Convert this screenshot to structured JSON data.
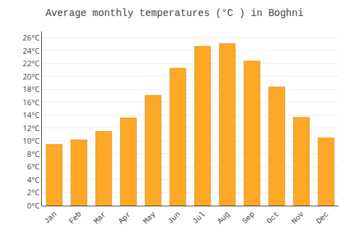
{
  "chart_data": {
    "type": "bar",
    "title": "Average monthly temperatures (°C ) in Boghni",
    "categories": [
      "Jan",
      "Feb",
      "Mar",
      "Apr",
      "May",
      "Jun",
      "Jul",
      "Aug",
      "Sep",
      "Oct",
      "Nov",
      "Dec"
    ],
    "values": [
      9.5,
      10.2,
      11.5,
      13.6,
      17.1,
      21.3,
      24.7,
      25.1,
      22.4,
      18.4,
      13.7,
      10.5
    ],
    "color": "#FFA726",
    "ylim": [
      0,
      27
    ],
    "yticks": [
      {
        "value": 0,
        "label": "0°C"
      },
      {
        "value": 2,
        "label": "2°C"
      },
      {
        "value": 4,
        "label": "4°C"
      },
      {
        "value": 6,
        "label": "6°C"
      },
      {
        "value": 8,
        "label": "8°C"
      },
      {
        "value": 10,
        "label": "10°C"
      },
      {
        "value": 12,
        "label": "12°C"
      },
      {
        "value": 14,
        "label": "14°C"
      },
      {
        "value": 16,
        "label": "16°C"
      },
      {
        "value": 18,
        "label": "18°C"
      },
      {
        "value": 20,
        "label": "20°C"
      },
      {
        "value": 22,
        "label": "22°C"
      },
      {
        "value": 24,
        "label": "24°C"
      },
      {
        "value": 26,
        "label": "26°C"
      }
    ],
    "grid": true
  }
}
